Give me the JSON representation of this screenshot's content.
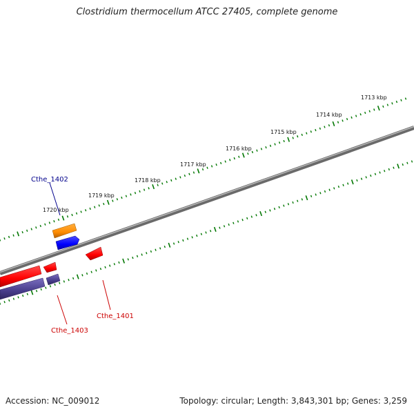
{
  "title": "Clostridium thermocellum ATCC 27405, complete genome",
  "footer": {
    "accession": "Accession: NC_009012",
    "stats": "Topology: circular; Length: 3,843,301 bp; Genes: 3,259"
  },
  "scale_labels": [
    "1713 kbp",
    "1714 kbp",
    "1715 kbp",
    "1716 kbp",
    "1717 kbp",
    "1718 kbp",
    "1719 kbp",
    "1720 kbp"
  ],
  "gene_labels": [
    {
      "text": "Cthe_1402",
      "color": "#00008b"
    },
    {
      "text": "Cthe_1401",
      "color": "#cc0000"
    },
    {
      "text": "Cthe_1403",
      "color": "#cc0000"
    }
  ],
  "colors": {
    "backbone": "#808080",
    "ticks": "#007700",
    "forward_cds": "#ff0000",
    "reverse_cds": "#0000ff",
    "orange_feature": "#ff8c00",
    "slate_feature": "#483d8b"
  }
}
